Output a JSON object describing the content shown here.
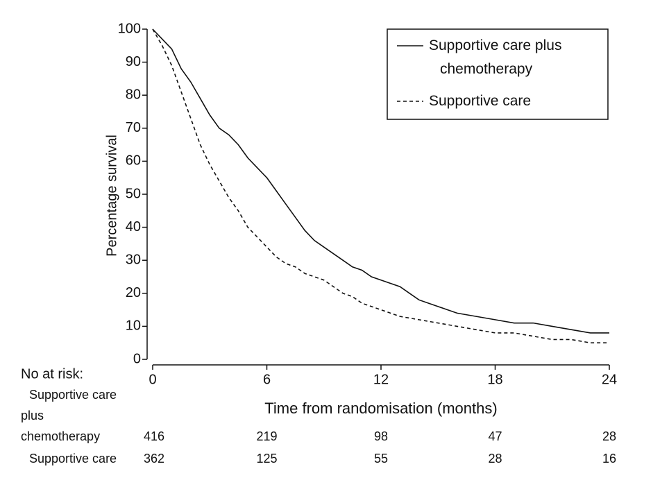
{
  "chart_data": {
    "type": "line",
    "xlabel": "Time from randomisation (months)",
    "ylabel": "Percentage survival",
    "xlim": [
      0,
      24
    ],
    "xticks": [
      0,
      6,
      12,
      18,
      24
    ],
    "ylim": [
      0,
      100
    ],
    "yticks": [
      0,
      10,
      20,
      30,
      40,
      50,
      60,
      70,
      80,
      90,
      100
    ],
    "grid": false,
    "legend_position": "upper right",
    "series": [
      {
        "name": "Supportive care plus chemotherapy",
        "color": "#111111",
        "linestyle": "solid",
        "x": [
          0,
          0.5,
          1,
          1.5,
          2,
          2.5,
          3,
          3.5,
          4,
          4.5,
          5,
          5.5,
          6,
          6.5,
          7,
          7.5,
          8,
          8.5,
          9,
          9.5,
          10,
          10.5,
          11,
          11.5,
          12,
          12.5,
          13,
          13.5,
          14,
          14.5,
          15,
          15.5,
          16,
          17,
          18,
          19,
          20,
          21,
          22,
          23,
          24
        ],
        "values": [
          100,
          97,
          94,
          88,
          84,
          79,
          74,
          70,
          68,
          65,
          61,
          58,
          55,
          51,
          47,
          43,
          39,
          36,
          34,
          32,
          30,
          28,
          27,
          25,
          24,
          23,
          22,
          20,
          18,
          17,
          16,
          15,
          14,
          13,
          12,
          11,
          11,
          10,
          9,
          8,
          8
        ]
      },
      {
        "name": "Supportive care",
        "color": "#111111",
        "linestyle": "dashed",
        "x": [
          0,
          0.5,
          1,
          1.5,
          2,
          2.5,
          3,
          3.5,
          4,
          4.5,
          5,
          5.5,
          6,
          6.5,
          7,
          7.5,
          8,
          8.5,
          9,
          9.5,
          10,
          10.5,
          11,
          11.5,
          12,
          12.5,
          13,
          14,
          15,
          16,
          17,
          18,
          19,
          20,
          21,
          22,
          23,
          24
        ],
        "values": [
          100,
          95,
          89,
          81,
          73,
          65,
          59,
          54,
          49,
          45,
          40,
          37,
          34,
          31,
          29,
          28,
          26,
          25,
          24,
          22,
          20,
          19,
          17,
          16,
          15,
          14,
          13,
          12,
          11,
          10,
          9,
          8,
          8,
          7,
          6,
          6,
          5,
          5
        ]
      }
    ],
    "risk_table": {
      "title": "No at risk:",
      "rows": [
        {
          "label": [
            "Supportive care",
            "plus",
            "chemotherapy"
          ],
          "values": [
            416,
            219,
            98,
            47,
            28
          ]
        },
        {
          "label": [
            "Supportive care"
          ],
          "values": [
            362,
            125,
            55,
            28,
            16
          ]
        }
      ]
    }
  }
}
